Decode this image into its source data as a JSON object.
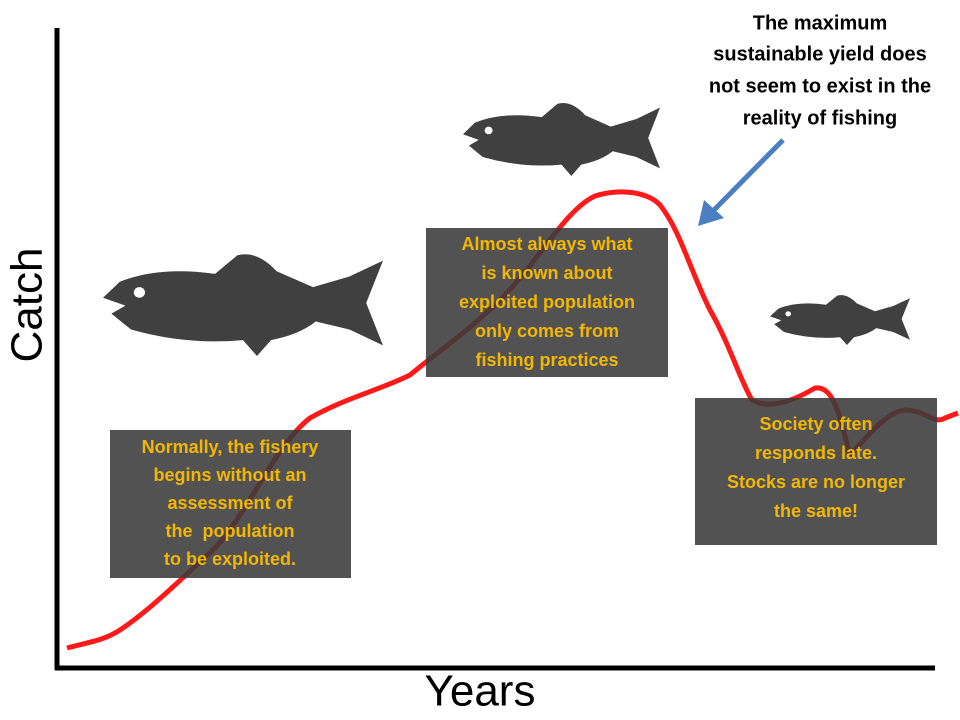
{
  "axes": {
    "y_label": "Catch",
    "x_label": "Years"
  },
  "callout": {
    "lines": [
      "The maximum",
      "sustainable yield does",
      "not seem to exist in the",
      "reality of fishing"
    ]
  },
  "annotations": [
    {
      "lines": [
        "Normally, the fishery",
        "begins without an",
        "assessment of",
        "the  population",
        "to be exploited."
      ]
    },
    {
      "lines": [
        "Almost always what",
        "is known about",
        "exploited population",
        "only comes from",
        "fishing practices"
      ]
    },
    {
      "lines": [
        "Society often",
        "responds late.",
        "Stocks are no longer",
        "the same!"
      ]
    }
  ]
}
